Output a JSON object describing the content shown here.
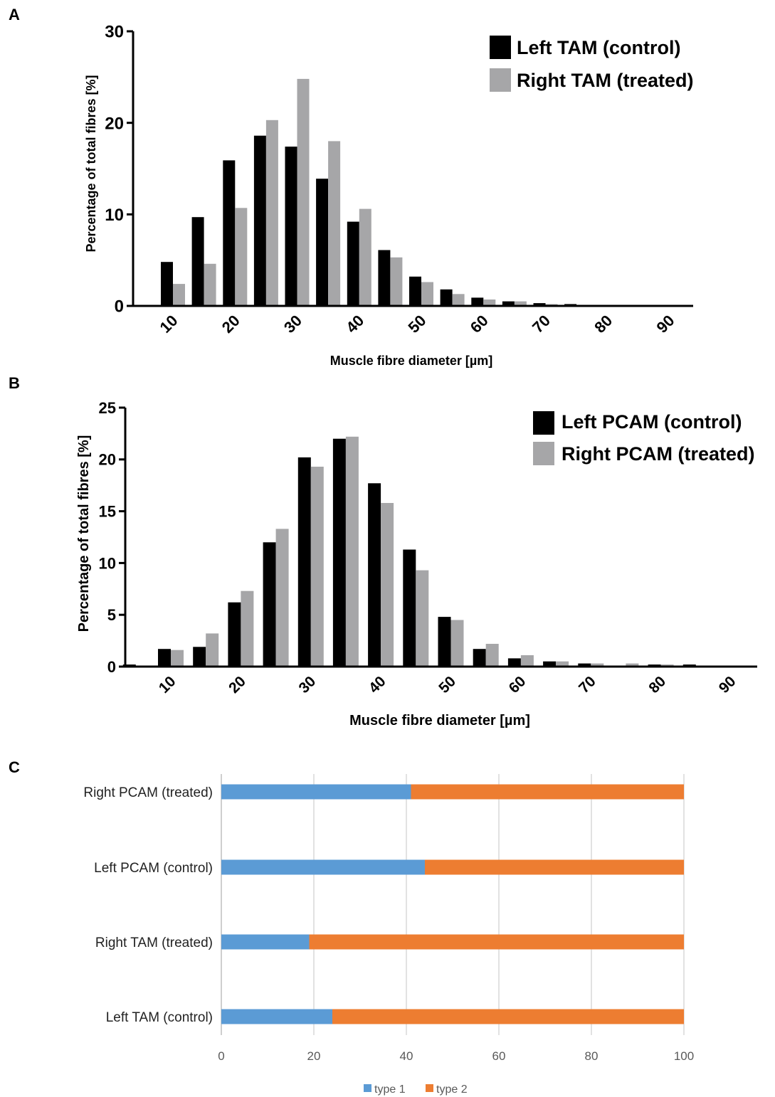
{
  "colors": {
    "control": "#000000",
    "treated": "#a6a6a8",
    "type1": "#5b9bd5",
    "type2": "#ed7d31",
    "grid": "#d9d9d9",
    "c_axis": "#bfbfbf"
  },
  "chart_data": [
    {
      "panel_label": "A",
      "type": "bar",
      "title": "",
      "xlabel": "Muscle fibre diameter [µm]",
      "ylabel": "Percentage of total fibres [%]",
      "x_ticks": [
        "10",
        "20",
        "30",
        "40",
        "50",
        "60",
        "70",
        "80",
        "90"
      ],
      "y_ticks": [
        "0",
        "10",
        "20",
        "30"
      ],
      "ylim": [
        0,
        30
      ],
      "x": [
        5,
        10,
        15,
        20,
        25,
        30,
        35,
        40,
        45,
        50,
        55,
        60,
        65,
        70,
        75,
        80,
        85,
        90
      ],
      "legend_position": "top-right",
      "series": [
        {
          "name": "Left TAM (control)",
          "color_key": "control",
          "values": [
            0.1,
            4.8,
            9.7,
            15.9,
            18.6,
            17.4,
            13.9,
            9.2,
            6.1,
            3.2,
            1.8,
            0.9,
            0.5,
            0.3,
            0.2,
            0.1,
            0.1,
            0.1
          ]
        },
        {
          "name": "Right TAM (treated)",
          "color_key": "treated",
          "values": [
            0.0,
            2.4,
            4.6,
            10.7,
            20.3,
            24.8,
            18.0,
            10.6,
            5.3,
            2.6,
            1.3,
            0.7,
            0.5,
            0.2,
            0.1,
            0.1,
            0.1,
            0.1
          ]
        }
      ]
    },
    {
      "panel_label": "B",
      "type": "bar",
      "title": "",
      "xlabel": "Muscle fibre diameter [µm]",
      "ylabel": "Percentage of total fibres [%]",
      "x_ticks": [
        "10",
        "20",
        "30",
        "40",
        "50",
        "60",
        "70",
        "80",
        "90"
      ],
      "y_ticks": [
        "0",
        "5",
        "10",
        "15",
        "20",
        "25"
      ],
      "ylim": [
        0,
        25
      ],
      "x": [
        5,
        10,
        15,
        20,
        25,
        30,
        35,
        40,
        45,
        50,
        55,
        60,
        65,
        70,
        75,
        80,
        85,
        90
      ],
      "legend_position": "top-right",
      "series": [
        {
          "name": "Left PCAM (control)",
          "color_key": "control",
          "values": [
            0.2,
            1.7,
            1.9,
            6.2,
            12.0,
            20.2,
            22.0,
            17.7,
            11.3,
            4.8,
            1.7,
            0.8,
            0.5,
            0.3,
            0.1,
            0.2,
            0.2,
            0.1
          ]
        },
        {
          "name": "Right PCAM (treated)",
          "color_key": "treated",
          "values": [
            0.1,
            1.6,
            3.2,
            7.3,
            13.3,
            19.3,
            22.2,
            15.8,
            9.3,
            4.5,
            2.2,
            1.1,
            0.5,
            0.3,
            0.3,
            0.2,
            0.1,
            0.1
          ]
        }
      ]
    },
    {
      "panel_label": "C",
      "type": "bar",
      "orientation": "horizontal",
      "stacked": true,
      "title": "",
      "xlabel": "",
      "ylabel": "",
      "xlim": [
        0,
        100
      ],
      "x_ticks": [
        "0",
        "20",
        "40",
        "60",
        "80",
        "100"
      ],
      "grid": true,
      "legend_position": "bottom",
      "categories": [
        "Right PCAM (treated)",
        "Left PCAM (control)",
        "Right TAM (treated)",
        "Left TAM (control)"
      ],
      "series": [
        {
          "name": "type 1",
          "color_key": "type1",
          "values": [
            41,
            44,
            19,
            24
          ]
        },
        {
          "name": "type 2",
          "color_key": "type2",
          "values": [
            59,
            56,
            81,
            76
          ]
        }
      ]
    }
  ]
}
